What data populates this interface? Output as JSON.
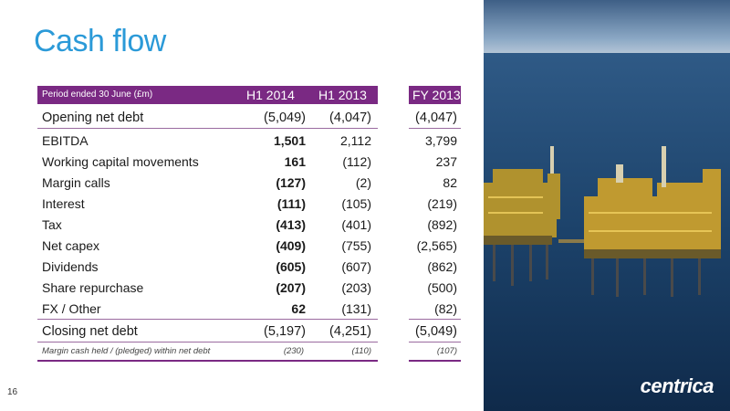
{
  "slide": {
    "title": "Cash flow",
    "page_number": "16",
    "logo_text": "centrica"
  },
  "table": {
    "header": {
      "period": "Period ended 30 June (£m)",
      "col1": "H1 2014",
      "col2": "H1 2013",
      "col3": "FY 2013"
    },
    "rows": [
      {
        "label": "Opening net debt",
        "h1_2014": "(5,049)",
        "h1_2013": "(4,047)",
        "fy_2013": "(4,047)"
      },
      {
        "label": "EBITDA",
        "h1_2014": "1,501",
        "h1_2013": "2,112",
        "fy_2013": "3,799"
      },
      {
        "label": "Working capital movements",
        "h1_2014": "161",
        "h1_2013": "(112)",
        "fy_2013": "237"
      },
      {
        "label": "Margin calls",
        "h1_2014": "(127)",
        "h1_2013": "(2)",
        "fy_2013": "82"
      },
      {
        "label": "Interest",
        "h1_2014": "(111)",
        "h1_2013": "(105)",
        "fy_2013": "(219)"
      },
      {
        "label": "Tax",
        "h1_2014": "(413)",
        "h1_2013": "(401)",
        "fy_2013": "(892)"
      },
      {
        "label": "Net capex",
        "h1_2014": "(409)",
        "h1_2013": "(755)",
        "fy_2013": "(2,565)"
      },
      {
        "label": "Dividends",
        "h1_2014": "(605)",
        "h1_2013": "(607)",
        "fy_2013": "(862)"
      },
      {
        "label": "Share repurchase",
        "h1_2014": "(207)",
        "h1_2013": "(203)",
        "fy_2013": "(500)"
      },
      {
        "label": "FX / Other",
        "h1_2014": "62",
        "h1_2013": "(131)",
        "fy_2013": "(82)"
      },
      {
        "label": "Closing net debt",
        "h1_2014": "(5,197)",
        "h1_2013": "(4,251)",
        "fy_2013": "(5,049)"
      }
    ],
    "note": {
      "label": "Margin cash held / (pledged) within net debt",
      "h1_2014": "(230)",
      "h1_2013": "(110)",
      "fy_2013": "(107)"
    }
  },
  "colors": {
    "title": "#2b9ad8",
    "header_bg": "#7a2983"
  }
}
